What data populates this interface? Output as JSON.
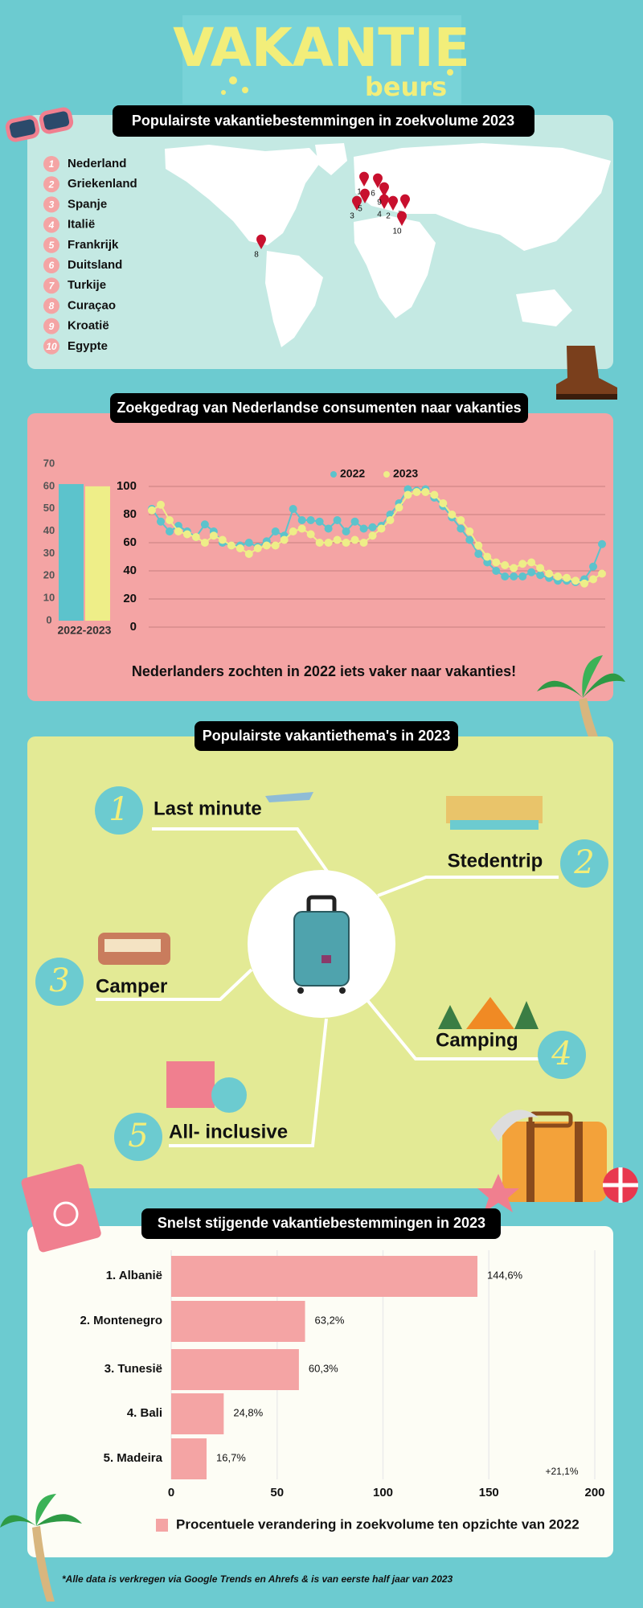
{
  "logo": {
    "title": "VAKANTIE",
    "subtitle": "beurs"
  },
  "destinations": {
    "title": "Populairste vakantiebestemmingen in zoekvolume 2023",
    "items": [
      {
        "rank": 1,
        "name": "Nederland"
      },
      {
        "rank": 2,
        "name": "Griekenland"
      },
      {
        "rank": 3,
        "name": "Spanje"
      },
      {
        "rank": 4,
        "name": "Italië"
      },
      {
        "rank": 5,
        "name": "Frankrijk"
      },
      {
        "rank": 6,
        "name": "Duitsland"
      },
      {
        "rank": 7,
        "name": "Turkije"
      },
      {
        "rank": 8,
        "name": "Curaçao"
      },
      {
        "rank": 9,
        "name": "Kroatië"
      },
      {
        "rank": 10,
        "name": "Egypte"
      }
    ]
  },
  "chart_data": [
    {
      "type": "bar",
      "categories": [
        "2022-2023"
      ],
      "series": [
        {
          "color": "#5cc3cc",
          "values": [
            61
          ]
        },
        {
          "color": "#eeee88",
          "values": [
            60
          ]
        }
      ],
      "ylim": [
        0,
        70
      ],
      "yticks": [
        0,
        10,
        20,
        30,
        40,
        50,
        60,
        70
      ]
    },
    {
      "type": "line",
      "title": "Zoekgedrag van Nederlandse consumenten naar vakanties",
      "series": [
        {
          "name": "2022",
          "color": "#5cc3cc",
          "values": [
            84,
            75,
            68,
            72,
            68,
            64,
            73,
            68,
            60,
            58,
            58,
            60,
            57,
            61,
            68,
            65,
            84,
            76,
            76,
            75,
            70,
            76,
            68,
            75,
            70,
            71,
            72,
            80,
            88,
            98,
            97,
            98,
            92,
            86,
            78,
            70,
            62,
            52,
            46,
            40,
            36,
            36,
            36,
            39,
            37,
            35,
            33,
            33,
            32,
            34,
            43,
            59
          ]
        },
        {
          "name": "2023",
          "color": "#eeee88",
          "values": [
            83,
            87,
            76,
            68,
            66,
            64,
            60,
            65,
            62,
            58,
            56,
            52,
            56,
            58,
            58,
            62,
            68,
            70,
            66,
            60,
            60,
            62,
            60,
            62,
            60,
            65,
            70,
            76,
            85,
            94,
            96,
            96,
            94,
            88,
            80,
            76,
            68,
            58,
            50,
            46,
            44,
            42,
            45,
            46,
            42,
            38,
            36,
            35,
            33,
            31,
            34,
            38
          ]
        }
      ],
      "ylim": [
        0,
        100
      ],
      "yticks": [
        0,
        20,
        40,
        60,
        80,
        100
      ],
      "grid": true,
      "annotation": "Nederlanders zochten in 2022 iets vaker naar vakanties!"
    },
    {
      "type": "hbar",
      "title": "Snelst stijgende vakantiebestemmingen in 2023",
      "categories": [
        "1. Albanië",
        "2. Montenegro",
        "3. Tunesië",
        "4. Bali",
        "5. Madeira"
      ],
      "values": [
        144.6,
        63.2,
        60.3,
        24.8,
        16.7
      ],
      "value_labels": [
        "144,6%",
        "63,2%",
        "60,3%",
        "24,8%",
        "16,7%"
      ],
      "color": "#f4a4a4",
      "xlim": [
        0,
        200
      ],
      "xticks": [
        0,
        50,
        100,
        150,
        200
      ],
      "grid": true,
      "legend": "Procentuele verandering in zoekvolume ten opzichte van 2022",
      "annotation": "+21,1%"
    }
  ],
  "themes": {
    "title": "Populairste vakantiethema's in 2023",
    "items": [
      {
        "number": 1,
        "label": "Last minute"
      },
      {
        "number": 2,
        "label": "Stedentrip"
      },
      {
        "number": 3,
        "label": "Camper"
      },
      {
        "number": 4,
        "label": "Camping"
      },
      {
        "number": 5,
        "label": "All- inclusive"
      }
    ]
  },
  "footnote": "*Alle data is verkregen via Google Trends en Ahrefs & is van eerste half jaar van 2023"
}
